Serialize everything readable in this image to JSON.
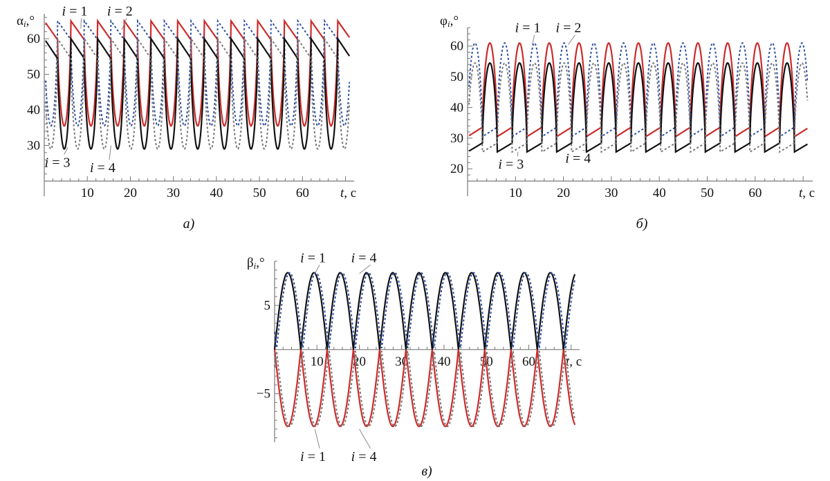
{
  "chart_data": [
    {
      "id": "a",
      "type": "line",
      "caption": "а)",
      "ylabel": {
        "sym": "α",
        "sub": "i",
        "unit": ",°"
      },
      "xlabel": {
        "sym": "t",
        "unit": ", с"
      },
      "xlim": [
        0,
        72
      ],
      "ylim": [
        20,
        67
      ],
      "xticks": [
        10,
        20,
        30,
        40,
        50,
        60
      ],
      "yticks": [
        30,
        40,
        50,
        60
      ],
      "period": 6.2,
      "annotations": [
        {
          "text": "i = 1",
          "at": [
            7.0,
            66.5
          ],
          "to": [
            8.5,
            62.8
          ]
        },
        {
          "text": "i = 2",
          "at": [
            17.5,
            66.5
          ],
          "to": [
            18.0,
            62.5
          ]
        },
        {
          "text": "i = 3",
          "at": [
            3.0,
            24.0
          ],
          "to": [
            5.5,
            29.5
          ]
        },
        {
          "text": "i = 4",
          "at": [
            13.5,
            22.5
          ],
          "to": [
            15.5,
            30.0
          ]
        }
      ],
      "series": [
        {
          "key": "i1",
          "color": "#cc2b2b",
          "dash": "",
          "high": 65.0,
          "low": 35.5,
          "phase": 0.0
        },
        {
          "key": "i2",
          "color": "#2e4fa3",
          "dash": "3,3",
          "high": 65.0,
          "low": 35.5,
          "phase": 3.1
        },
        {
          "key": "i3",
          "color": "#111111",
          "dash": "",
          "high": 60.0,
          "low": 29.0,
          "phase": 0.0
        },
        {
          "key": "i4",
          "color": "#777777",
          "dash": "3,3",
          "high": 60.0,
          "low": 29.0,
          "phase": 3.1
        }
      ]
    },
    {
      "id": "b",
      "type": "line",
      "caption": "б)",
      "ylabel": {
        "sym": "φ",
        "sub": "i",
        "unit": ",°"
      },
      "xlabel": {
        "sym": "t",
        "unit": ", с"
      },
      "xlim": [
        0,
        72
      ],
      "ylim": [
        16,
        66
      ],
      "xticks": [
        10,
        20,
        30,
        40,
        50,
        60
      ],
      "yticks": [
        20,
        30,
        40,
        50,
        60
      ],
      "period": 6.2,
      "annotations": [
        {
          "text": "i = 1",
          "at": [
            12.5,
            64.5
          ],
          "to": [
            13.5,
            60.5
          ]
        },
        {
          "text": "i = 2",
          "at": [
            21.0,
            64.5
          ],
          "to": [
            21.0,
            60.5
          ]
        },
        {
          "text": "i = 3",
          "at": [
            9.0,
            20.0
          ],
          "to": [
            10.5,
            25.5
          ]
        },
        {
          "text": "i = 4",
          "at": [
            23.0,
            22.0
          ],
          "to": [
            24.0,
            26.0
          ]
        }
      ],
      "series": [
        {
          "key": "i1",
          "color": "#cc2b2b",
          "dash": "",
          "high": 61.0,
          "low": 30.5,
          "phase": 0.0,
          "inverse": true
        },
        {
          "key": "i2",
          "color": "#2e4fa3",
          "dash": "3,3",
          "high": 61.0,
          "low": 30.5,
          "phase": 3.1,
          "inverse": true
        },
        {
          "key": "i3",
          "color": "#111111",
          "dash": "",
          "high": 54.5,
          "low": 25.5,
          "phase": 0.0,
          "inverse": true
        },
        {
          "key": "i4",
          "color": "#777777",
          "dash": "3,3",
          "high": 54.5,
          "low": 25.5,
          "phase": 3.1,
          "inverse": true
        }
      ]
    },
    {
      "id": "c",
      "type": "line",
      "caption": "в)",
      "ylabel": {
        "sym": "β",
        "sub": "i",
        "unit": ",°"
      },
      "xlabel": {
        "sym": "t",
        "unit": ", с"
      },
      "xlim": [
        0,
        72
      ],
      "ylim": [
        -10.5,
        10
      ],
      "xticks": [
        10,
        20,
        30,
        40,
        50,
        60
      ],
      "yticks": [
        -5,
        5
      ],
      "period": 6.2,
      "annotations": [
        {
          "text": "i = 1",
          "at": [
            9.0,
            9.9
          ],
          "to": [
            9.5,
            8.6
          ]
        },
        {
          "text": "i = 4",
          "at": [
            21.0,
            9.9
          ],
          "to": [
            20.0,
            8.6
          ]
        },
        {
          "text": "i = 1",
          "at": [
            9.0,
            -12.6
          ],
          "to": [
            9.5,
            -9.0
          ]
        },
        {
          "text": "i = 4",
          "at": [
            21.0,
            -12.6
          ],
          "to": [
            20.0,
            -9.0
          ]
        }
      ],
      "series": [
        {
          "key": "i1-upper",
          "color": "#111111",
          "dash": "",
          "amp": 8.7,
          "shift": 0.0,
          "sign": 1
        },
        {
          "key": "i4-upper",
          "color": "#2e4fa3",
          "dash": "3,3",
          "amp": 8.7,
          "shift": 0.45,
          "sign": 1
        },
        {
          "key": "i1-lower",
          "color": "#cc2b2b",
          "dash": "",
          "amp": 8.7,
          "shift": 0.0,
          "sign": -1
        },
        {
          "key": "i4-lower",
          "color": "#777777",
          "dash": "3,3",
          "amp": 8.7,
          "shift": 0.45,
          "sign": -1
        }
      ]
    }
  ]
}
